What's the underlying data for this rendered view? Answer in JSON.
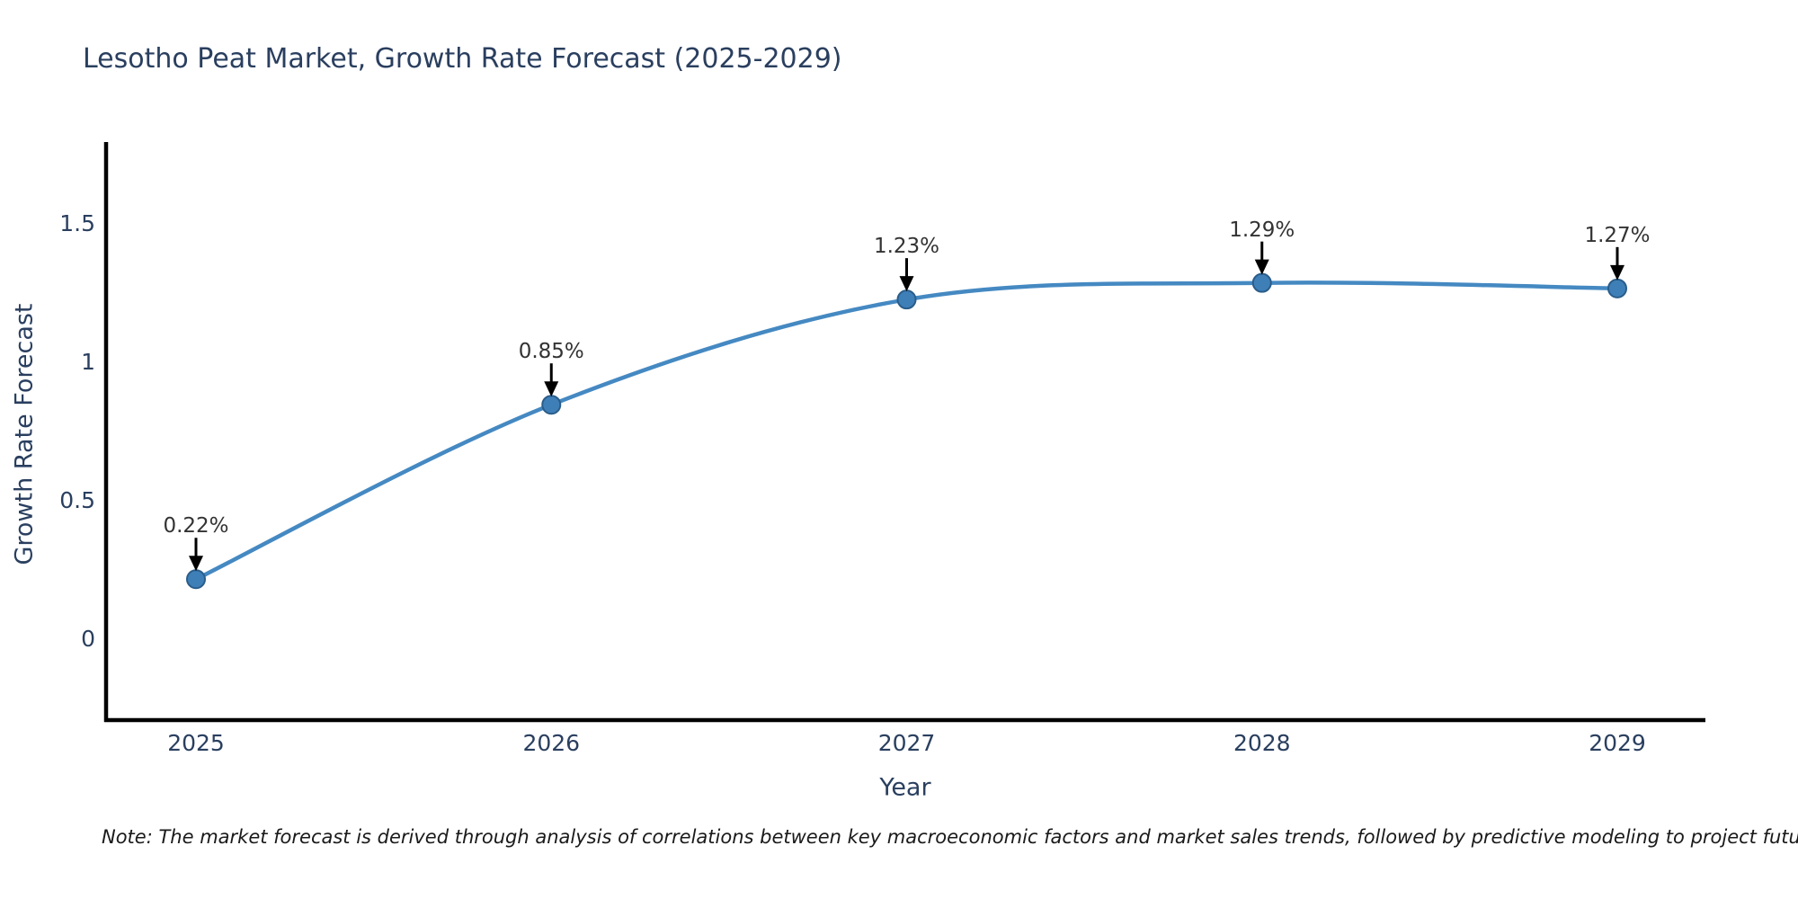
{
  "chart_data": {
    "type": "line",
    "title": "Lesotho Peat Market, Growth Rate Forecast (2025-2029)",
    "xlabel": "Year",
    "ylabel": "Growth Rate Forecast",
    "categories": [
      "2025",
      "2026",
      "2027",
      "2028",
      "2029"
    ],
    "series": [
      {
        "name": "Growth Rate Forecast",
        "values": [
          0.22,
          0.85,
          1.23,
          1.29,
          1.27
        ],
        "point_labels": [
          "0.22%",
          "0.85%",
          "1.23%",
          "1.29%",
          "1.27%"
        ]
      }
    ],
    "ytick_values": [
      0,
      0.5,
      1,
      1.5
    ],
    "ytick_labels": [
      "0",
      "0.5",
      "1",
      "1.5"
    ],
    "ylim": [
      -0.29,
      1.79
    ],
    "grid": false,
    "legend_position": "none",
    "smoothing": "spline",
    "colors": {
      "line": "#4589c2",
      "marker_fill": "#3f7fb8",
      "marker_edge": "#2a5d8a",
      "axis": "#000000",
      "axis_text": "#2a3f5f",
      "annotation_text": "#333333",
      "annotation_arrow": "#000000",
      "background": "#ffffff"
    }
  },
  "note": "Note: The market forecast is derived through analysis of correlations between key macroeconomic factors and market sales trends, followed by predictive modeling to project future sales"
}
